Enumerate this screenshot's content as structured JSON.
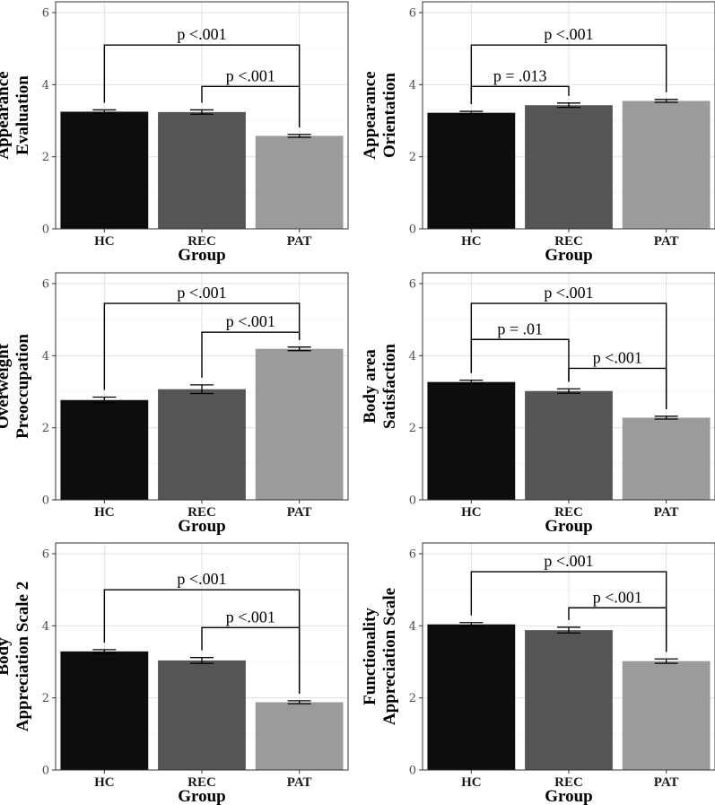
{
  "colors": {
    "HC": "#0d0d0d",
    "REC": "#555555",
    "PAT": "#9b9b9b",
    "grid_major": "#e0e0e0",
    "grid_minor": "#f0f0f0",
    "panel_border": "#333333"
  },
  "chart_data": [
    {
      "type": "bar",
      "ylabel_lines": [
        "Appearance",
        "Evaluation"
      ],
      "xlabel": "Group",
      "categories": [
        "HC",
        "REC",
        "PAT"
      ],
      "values": [
        3.25,
        3.24,
        2.58
      ],
      "errors": [
        0.05,
        0.06,
        0.04
      ],
      "ylim": [
        0,
        6
      ],
      "yticks": [
        "0",
        "2",
        "4",
        "6"
      ],
      "comparisons": [
        {
          "from": 0,
          "to": 2,
          "label": "p <.001",
          "level": 5.1
        },
        {
          "from": 1,
          "to": 2,
          "label": "p <.001",
          "level": 3.95
        }
      ]
    },
    {
      "type": "bar",
      "ylabel_lines": [
        "Appearance",
        "Orientation"
      ],
      "xlabel": "Group",
      "categories": [
        "HC",
        "REC",
        "PAT"
      ],
      "values": [
        3.22,
        3.43,
        3.55
      ],
      "errors": [
        0.04,
        0.06,
        0.04
      ],
      "ylim": [
        0,
        6
      ],
      "yticks": [
        "0",
        "2",
        "4",
        "6"
      ],
      "comparisons": [
        {
          "from": 0,
          "to": 2,
          "label": "p <.001",
          "level": 5.1
        },
        {
          "from": 0,
          "to": 1,
          "label": "p = .013",
          "level": 3.95
        }
      ]
    },
    {
      "type": "bar",
      "ylabel_lines": [
        "Overweight",
        "Preoccupation"
      ],
      "xlabel": "Group",
      "categories": [
        "HC",
        "REC",
        "PAT"
      ],
      "values": [
        2.77,
        3.07,
        4.19
      ],
      "errors": [
        0.08,
        0.12,
        0.05
      ],
      "ylim": [
        0,
        6
      ],
      "yticks": [
        "0",
        "2",
        "4",
        "6"
      ],
      "comparisons": [
        {
          "from": 0,
          "to": 2,
          "label": "p <.001",
          "level": 5.45
        },
        {
          "from": 1,
          "to": 2,
          "label": "p <.001",
          "level": 4.65
        }
      ]
    },
    {
      "type": "bar",
      "ylabel_lines": [
        "Body area",
        "Satisfaction"
      ],
      "xlabel": "Group",
      "categories": [
        "HC",
        "REC",
        "PAT"
      ],
      "values": [
        3.27,
        3.02,
        2.28
      ],
      "errors": [
        0.05,
        0.06,
        0.04
      ],
      "ylim": [
        0,
        6
      ],
      "yticks": [
        "0",
        "2",
        "4",
        "6"
      ],
      "comparisons": [
        {
          "from": 0,
          "to": 2,
          "label": "p <.001",
          "level": 5.45
        },
        {
          "from": 0,
          "to": 1,
          "label": "p = .01",
          "level": 4.45
        },
        {
          "from": 1,
          "to": 2,
          "label": "p <.001",
          "level": 3.65
        }
      ]
    },
    {
      "type": "bar",
      "ylabel_lines": [
        "Body",
        "Appreciation Scale 2"
      ],
      "xlabel": "Group",
      "categories": [
        "HC",
        "REC",
        "PAT"
      ],
      "values": [
        3.29,
        3.04,
        1.88
      ],
      "errors": [
        0.05,
        0.08,
        0.04
      ],
      "ylim": [
        0,
        6
      ],
      "yticks": [
        "0",
        "2",
        "4",
        "6"
      ],
      "comparisons": [
        {
          "from": 0,
          "to": 2,
          "label": "p <.001",
          "level": 5.0
        },
        {
          "from": 1,
          "to": 2,
          "label": "p <.001",
          "level": 3.95
        }
      ]
    },
    {
      "type": "bar",
      "ylabel_lines": [
        "Functionality",
        "Appreciation Scale"
      ],
      "xlabel": "Group",
      "categories": [
        "HC",
        "REC",
        "PAT"
      ],
      "values": [
        4.04,
        3.88,
        3.02
      ],
      "errors": [
        0.05,
        0.08,
        0.06
      ],
      "ylim": [
        0,
        6
      ],
      "yticks": [
        "0",
        "2",
        "4",
        "6"
      ],
      "comparisons": [
        {
          "from": 0,
          "to": 2,
          "label": "p <.001",
          "level": 5.5
        },
        {
          "from": 1,
          "to": 2,
          "label": "p <.001",
          "level": 4.5
        }
      ]
    }
  ]
}
